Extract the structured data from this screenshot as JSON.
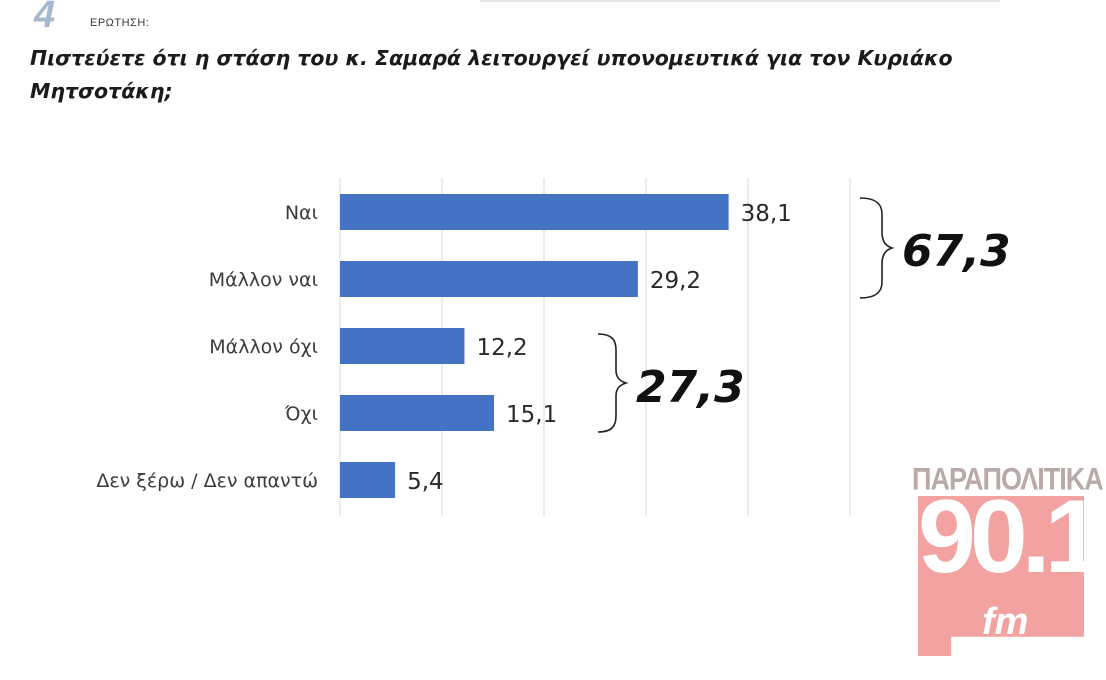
{
  "header": {
    "question_number": "4",
    "label": "ΕΡΩΤΗΣΗ:",
    "question": "Πιστεύετε ότι η στάση του κ. Σαμαρά λειτουργεί υπονομευτικά για τον Κυριάκο Μητσοτάκη;"
  },
  "chart_data": {
    "type": "bar",
    "orientation": "horizontal",
    "categories": [
      "Ναι",
      "Μάλλον ναι",
      "Μάλλον όχι",
      "Όχι",
      "Δεν ξέρω / Δεν απαντώ"
    ],
    "values": [
      38.1,
      29.2,
      12.2,
      15.1,
      5.4
    ],
    "value_labels": [
      "38,1",
      "29,2",
      "12,2",
      "15,1",
      "5,4"
    ],
    "xlim": [
      0,
      50
    ],
    "grid": true,
    "bar_color": "#4472c4",
    "group_totals": [
      {
        "label": "67,3",
        "categories": [
          "Ναι",
          "Μάλλον ναι"
        ]
      },
      {
        "label": "27,3",
        "categories": [
          "Μάλλον όχι",
          "Όχι"
        ]
      }
    ]
  },
  "logo": {
    "top_text": "ΠΑΡΑΠΟΛΙΤΙΚΑ",
    "number": "90.1",
    "suffix": "fm",
    "color": "#f3a2a2"
  }
}
